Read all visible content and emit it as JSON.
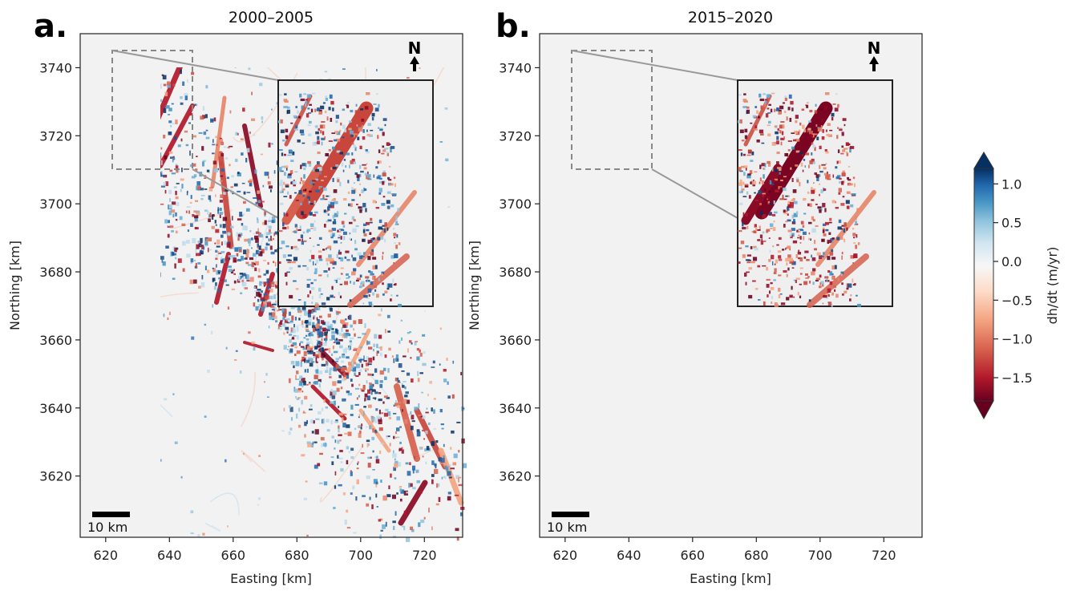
{
  "figure": {
    "colorbar": {
      "label": "dh/dt (m/yr)",
      "ticks": [
        "1.0",
        "0.5",
        "0.0",
        "−0.5",
        "−1.0",
        "−1.5"
      ],
      "tick_values": [
        1.0,
        0.5,
        0.0,
        -0.5,
        -1.0,
        -1.5
      ],
      "range": [
        -1.8,
        1.2
      ],
      "colormap": "RdBu (red = thinning, blue = thickening)",
      "colors": [
        "#67001f",
        "#b2182b",
        "#d6604d",
        "#f4a582",
        "#fddbc7",
        "#f7f7f7",
        "#d1e5f0",
        "#92c5de",
        "#4393c3",
        "#2166ac",
        "#053061"
      ]
    },
    "panels": [
      {
        "letter": "a.",
        "title": "2000–2005",
        "xlabel": "Easting [km]",
        "ylabel": "Northing [km]",
        "xticks": [
          "620",
          "640",
          "660",
          "680",
          "700",
          "720"
        ],
        "yticks": [
          "3620",
          "3640",
          "3660",
          "3680",
          "3700",
          "3720",
          "3740"
        ],
        "north_label": "N",
        "scale_bar_label": "10 km",
        "tone": "mixed"
      },
      {
        "letter": "b.",
        "title": "2015–2020",
        "xlabel": "Easting [km]",
        "ylabel": "Northing [km]",
        "xticks": [
          "620",
          "640",
          "660",
          "680",
          "700",
          "720"
        ],
        "yticks": [
          "3620",
          "3640",
          "3660",
          "3680",
          "3700",
          "3720",
          "3740"
        ],
        "north_label": "N",
        "scale_bar_label": "10 km",
        "tone": "thinning"
      }
    ]
  },
  "chart_data": [
    {
      "type": "heatmap",
      "title": "2000–2005",
      "xlabel": "Easting [km]",
      "ylabel": "Northing [km]",
      "xlim": [
        612,
        732
      ],
      "ylim": [
        3602,
        3750
      ],
      "value_label": "dh/dt (m/yr)",
      "value_range": [
        -1.8,
        1.2
      ]
    },
    {
      "type": "heatmap",
      "title": "2015–2020",
      "xlabel": "Easting [km]",
      "ylabel": "Northing [km]",
      "xlim": [
        612,
        732
      ],
      "ylim": [
        3602,
        3750
      ],
      "value_label": "dh/dt (m/yr)",
      "value_range": [
        -1.8,
        1.2
      ]
    }
  ]
}
